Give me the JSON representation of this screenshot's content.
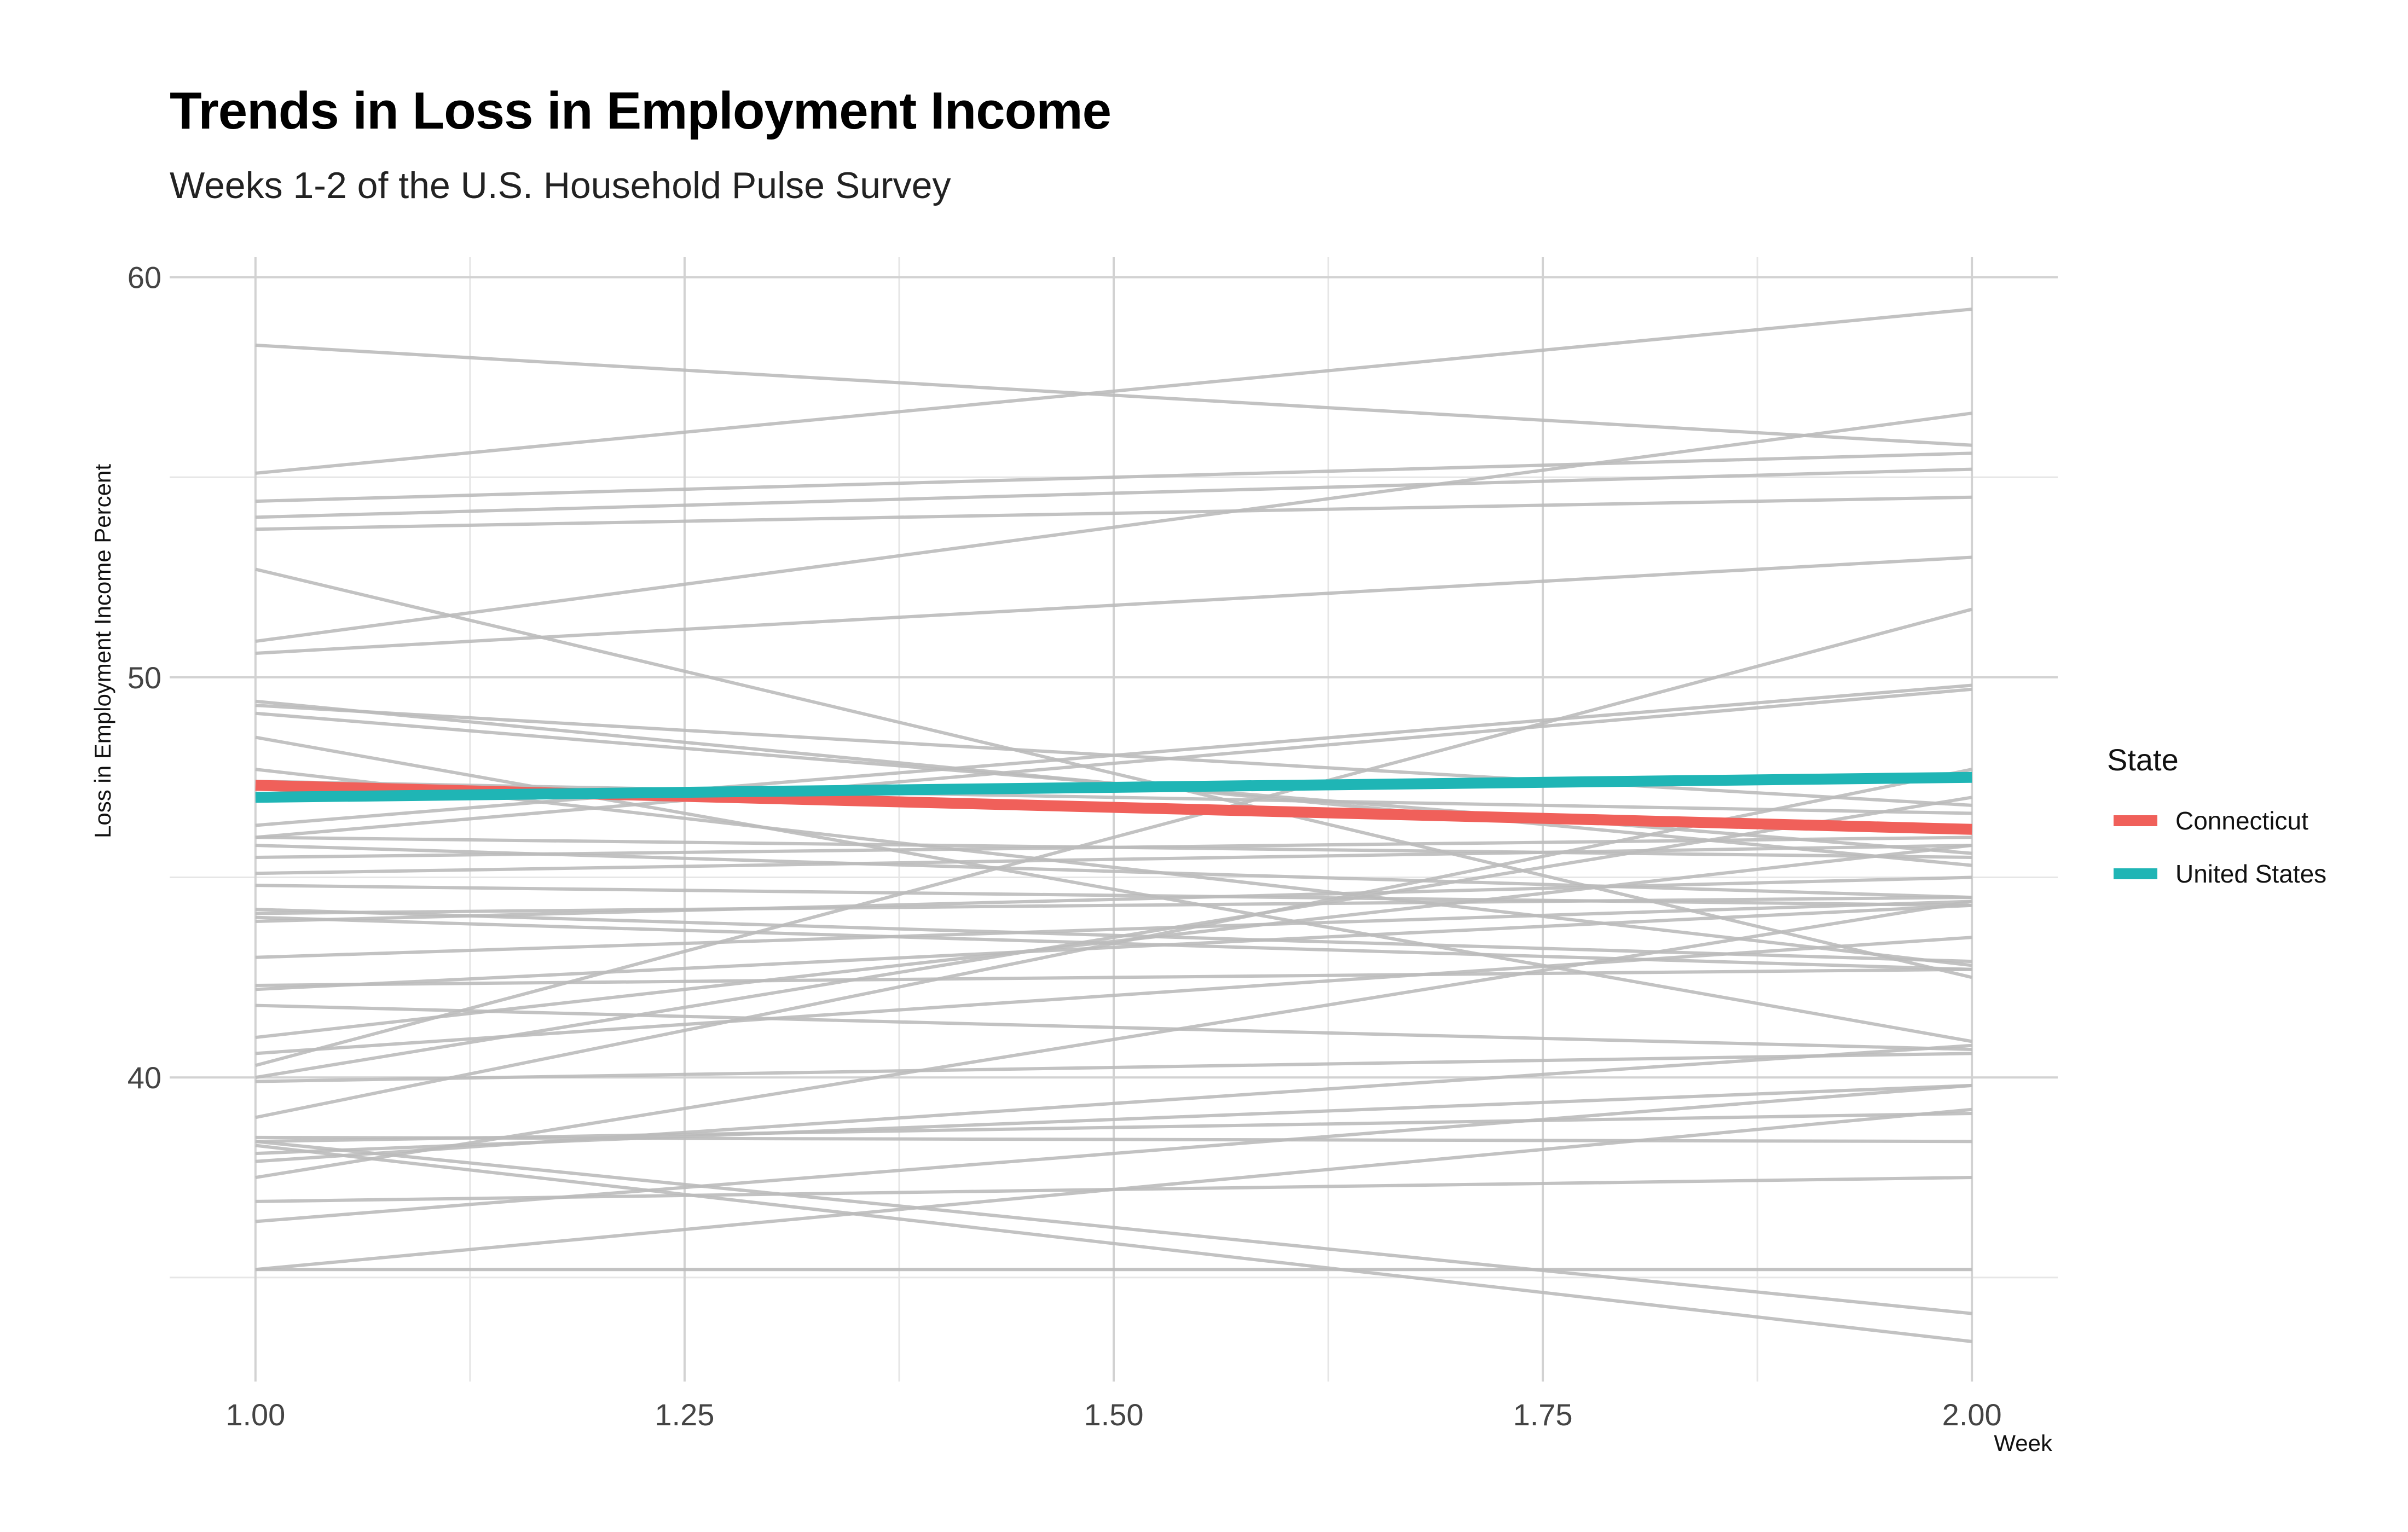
{
  "title": "Trends in Loss in Employment Income",
  "subtitle": "Weeks 1-2 of the U.S. Household Pulse Survey",
  "chart_data": {
    "type": "line",
    "title": "Trends in Loss in Employment Income",
    "subtitle": "Weeks 1-2 of the U.S. Household Pulse Survey",
    "xlabel": "Week",
    "ylabel": "Loss in Employment Income Percent",
    "x": [
      1,
      2
    ],
    "xlim": [
      0.95,
      2.05
    ],
    "ylim": [
      32.4,
      60.5
    ],
    "xticks": [
      1.0,
      1.25,
      1.5,
      1.75,
      2.0
    ],
    "xtick_labels": [
      "1.00",
      "1.25",
      "1.50",
      "1.75",
      "2.00"
    ],
    "yticks": [
      40,
      50,
      60
    ],
    "ytick_labels": [
      "40",
      "50",
      "60"
    ],
    "grid": true,
    "legend": {
      "title": "State",
      "placement": "right"
    },
    "highlight_series": [
      {
        "name": "Connecticut",
        "color": "#F0605A",
        "values": [
          47.3,
          46.2
        ]
      },
      {
        "name": "United States",
        "color": "#1FB5B5",
        "values": [
          47.0,
          47.5
        ]
      }
    ],
    "background_series_color": "#bbbbbb",
    "background_series": [
      [
        58.3,
        55.8
      ],
      [
        55.1,
        59.2
      ],
      [
        54.4,
        55.6
      ],
      [
        54.0,
        55.2
      ],
      [
        53.7,
        54.5
      ],
      [
        52.7,
        42.5
      ],
      [
        50.9,
        56.6
      ],
      [
        50.6,
        53.0
      ],
      [
        49.4,
        45.3
      ],
      [
        49.3,
        46.8
      ],
      [
        49.1,
        45.6
      ],
      [
        48.5,
        40.9
      ],
      [
        47.7,
        42.8
      ],
      [
        47.4,
        46.6
      ],
      [
        46.3,
        49.8
      ],
      [
        46.0,
        45.5
      ],
      [
        46.0,
        49.7
      ],
      [
        45.8,
        44.5
      ],
      [
        45.5,
        46.0
      ],
      [
        45.1,
        45.8
      ],
      [
        44.8,
        44.3
      ],
      [
        44.2,
        42.9
      ],
      [
        44.1,
        44.5
      ],
      [
        44.0,
        42.7
      ],
      [
        43.9,
        45.0
      ],
      [
        43.0,
        44.4
      ],
      [
        42.3,
        42.7
      ],
      [
        42.2,
        44.3
      ],
      [
        41.8,
        40.7
      ],
      [
        41.0,
        45.8
      ],
      [
        40.6,
        43.5
      ],
      [
        40.3,
        51.7
      ],
      [
        40.0,
        47.0
      ],
      [
        39.9,
        40.6
      ],
      [
        39.0,
        47.7
      ],
      [
        38.5,
        38.4
      ],
      [
        38.4,
        39.1
      ],
      [
        38.3,
        33.4
      ],
      [
        38.1,
        39.8
      ],
      [
        37.9,
        40.8
      ],
      [
        37.5,
        44.4
      ],
      [
        36.9,
        37.5
      ],
      [
        36.4,
        39.8
      ],
      [
        35.2,
        39.2
      ],
      [
        35.2,
        35.2
      ],
      [
        38.4,
        34.1
      ]
    ]
  }
}
